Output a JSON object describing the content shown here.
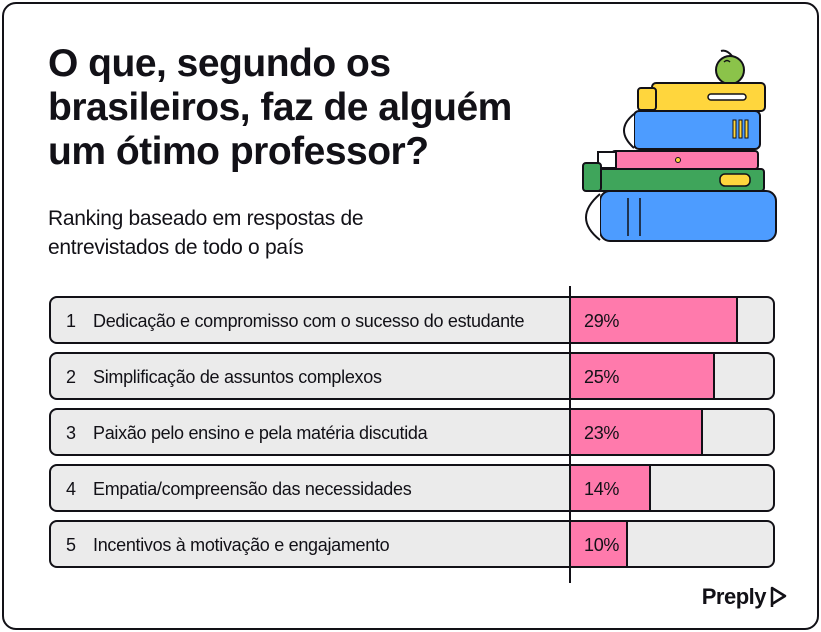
{
  "title": "O que, segundo os brasileiros, faz de alguém um ótimo professor?",
  "subtitle": "Ranking baseado em respostas de entrevistados de todo o país",
  "brand": "Preply",
  "colors": {
    "bar": "#ff7aac",
    "track": "#ebebeb",
    "ink": "#121117"
  },
  "illustration": "stack-of-books-with-apple",
  "chart_data": {
    "type": "bar",
    "orientation": "horizontal",
    "xlim": [
      0,
      35
    ],
    "grid": false,
    "categories": [
      "Dedicação e compromisso com o sucesso do estudante",
      "Simplificação de assuntos complexos",
      "Paixão pelo ensino e pela matéria discutida",
      "Empatia/compreensão das necessidades",
      "Incentivos à motivação e engajamento"
    ],
    "ranks": [
      "1",
      "2",
      "3",
      "4",
      "5"
    ],
    "values": [
      29,
      25,
      23,
      14,
      10
    ],
    "data_labels": [
      "29%",
      "25%",
      "23%",
      "14%",
      "10%"
    ]
  }
}
